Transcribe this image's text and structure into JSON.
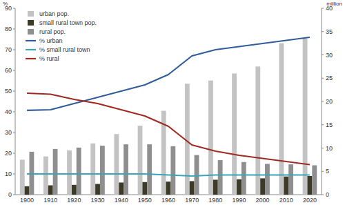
{
  "chart_data": {
    "type": "bar",
    "y_label": "%",
    "y2_label": "million",
    "categories": [
      "1900",
      "1910",
      "1920",
      "1930",
      "1940",
      "1950",
      "1960",
      "1970",
      "1980",
      "1990",
      "2000",
      "2010",
      "2020"
    ],
    "ylim": [
      0,
      90
    ],
    "yticks": [
      0,
      10,
      20,
      30,
      40,
      50,
      60,
      70,
      80,
      90
    ],
    "y2lim": [
      0,
      40
    ],
    "y2ticks": [
      0,
      5,
      10,
      15,
      20,
      25,
      30,
      35,
      40
    ],
    "legend": "upper left",
    "series": [
      {
        "name": "urban pop.",
        "type": "bar",
        "axis": "y2",
        "color": "#c3c3c3",
        "values": [
          7.5,
          8.2,
          9.5,
          11,
          13,
          14.8,
          18,
          23.8,
          24.5,
          26,
          27.5,
          32.5,
          33.5
        ]
      },
      {
        "name": "small rural town pop.",
        "type": "bar",
        "axis": "y2",
        "color": "#3d3a28",
        "values": [
          1.8,
          2,
          2.1,
          2.3,
          2.6,
          2.7,
          2.8,
          2.9,
          3.2,
          3.3,
          3.5,
          3.9,
          4
        ]
      },
      {
        "name": "rural pop.",
        "type": "bar",
        "axis": "y2",
        "color": "#8f8f8f",
        "values": [
          9.2,
          9.8,
          10.1,
          10.5,
          10.8,
          10.8,
          10.4,
          8.5,
          7.4,
          7,
          6.6,
          6.5,
          6.3
        ]
      },
      {
        "name": "% urban",
        "type": "line",
        "axis": "y",
        "color": "#2f5d9b",
        "values": [
          40.7,
          41,
          44,
          47,
          50,
          53,
          58,
          67,
          70,
          71.5,
          73,
          74.5,
          76
        ]
      },
      {
        "name": "% small rural town",
        "type": "line",
        "axis": "y",
        "color": "#3ba3ba",
        "values": [
          10,
          10,
          10,
          10,
          10,
          10,
          9.5,
          9,
          9.5,
          9.5,
          9.5,
          9.5,
          9.5
        ]
      },
      {
        "name": "% rural",
        "type": "line",
        "axis": "y",
        "color": "#9e2b22",
        "values": [
          49,
          48.5,
          46,
          44,
          41,
          38,
          33,
          24,
          21,
          19,
          17.5,
          16,
          14.5
        ]
      }
    ]
  }
}
